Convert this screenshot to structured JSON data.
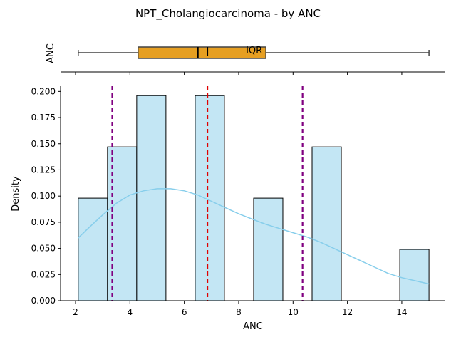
{
  "chart_data": [
    {
      "type": "box",
      "title": "NPT_Cholangiocarcinoma - by ANC",
      "ylabel": "ANC",
      "annotation": "IQR",
      "xlim": [
        1.45,
        15.6
      ],
      "box": {
        "min": 2.1,
        "q1": 4.3,
        "median": 6.5,
        "mean": 6.85,
        "q3": 9.0,
        "max": 15.0
      },
      "box_color": "#e69f22"
    },
    {
      "type": "bar",
      "xlabel": "ANC",
      "ylabel": "Density",
      "xlim": [
        1.45,
        15.6
      ],
      "ylim": [
        0,
        0.205
      ],
      "xticks": [
        "2",
        "4",
        "6",
        "8",
        "10",
        "12",
        "14"
      ],
      "yticks": [
        "0.000",
        "0.025",
        "0.050",
        "0.075",
        "0.100",
        "0.125",
        "0.150",
        "0.175",
        "0.200"
      ],
      "bins": [
        {
          "x0": 2.1,
          "x1": 3.175,
          "density": 0.098
        },
        {
          "x0": 3.175,
          "x1": 4.25,
          "density": 0.147
        },
        {
          "x0": 4.25,
          "x1": 5.325,
          "density": 0.196
        },
        {
          "x0": 5.325,
          "x1": 6.4,
          "density": 0.0
        },
        {
          "x0": 6.4,
          "x1": 7.475,
          "density": 0.196
        },
        {
          "x0": 7.475,
          "x1": 8.55,
          "density": 0.0
        },
        {
          "x0": 8.55,
          "x1": 9.625,
          "density": 0.098
        },
        {
          "x0": 9.625,
          "x1": 10.7,
          "density": 0.0
        },
        {
          "x0": 10.7,
          "x1": 11.775,
          "density": 0.147
        },
        {
          "x0": 11.775,
          "x1": 12.85,
          "density": 0.0
        },
        {
          "x0": 12.85,
          "x1": 13.925,
          "density": 0.0
        },
        {
          "x0": 13.925,
          "x1": 15.0,
          "density": 0.049
        }
      ],
      "kde": {
        "x": [
          2.1,
          2.5,
          3.0,
          3.5,
          4.0,
          4.5,
          5.0,
          5.5,
          6.0,
          6.5,
          7.0,
          7.5,
          8.0,
          8.5,
          9.0,
          9.5,
          10.0,
          10.5,
          11.0,
          11.5,
          12.0,
          12.5,
          13.0,
          13.5,
          14.0,
          14.5,
          15.0
        ],
        "y": [
          0.06,
          0.07,
          0.082,
          0.093,
          0.101,
          0.105,
          0.107,
          0.107,
          0.105,
          0.101,
          0.095,
          0.089,
          0.083,
          0.078,
          0.073,
          0.069,
          0.065,
          0.061,
          0.056,
          0.05,
          0.044,
          0.038,
          0.032,
          0.026,
          0.022,
          0.019,
          0.016
        ]
      },
      "vlines": [
        {
          "x": 3.35,
          "color": "#800080"
        },
        {
          "x": 6.85,
          "color": "#e00000"
        },
        {
          "x": 10.35,
          "color": "#800080"
        }
      ],
      "bar_color": "#c3e6f4",
      "kde_color": "#87ceeb"
    }
  ]
}
